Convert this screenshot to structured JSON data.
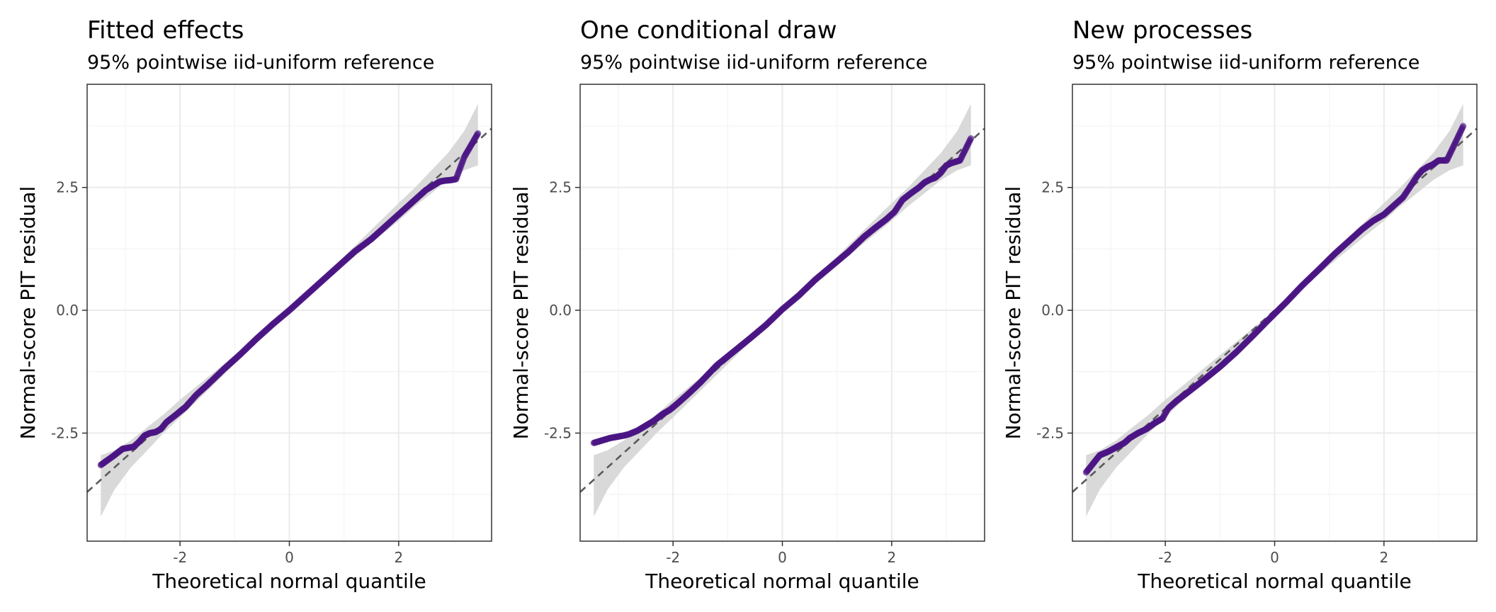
{
  "chart_data": [
    {
      "type": "scatter",
      "title": "Fitted effects",
      "subtitle": "95% pointwise iid-uniform reference",
      "xlabel": "Theoretical normal quantile",
      "ylabel": "Normal-score PIT residual",
      "xlim": [
        -3.7,
        3.7
      ],
      "ylim": [
        -4.7,
        4.6
      ],
      "x_ticks": [
        -2,
        0,
        2
      ],
      "x_tick_labels": [
        "-2",
        "0",
        "2"
      ],
      "y_ticks": [
        -2.5,
        0,
        2.5
      ],
      "y_tick_labels": [
        "-2.5",
        "0.0",
        "2.5"
      ],
      "grid": true,
      "reference_line": {
        "slope": 1,
        "intercept": 0,
        "style": "dashed"
      },
      "band": {
        "x": [
          -3.45,
          -3.2,
          -2.9,
          -2.6,
          -2.3,
          -2.0,
          -1.5,
          0,
          1.5,
          2.0,
          2.3,
          2.6,
          2.9,
          3.2,
          3.45
        ],
        "lower": [
          -4.2,
          -3.65,
          -3.2,
          -2.85,
          -2.5,
          -2.18,
          -1.64,
          0,
          1.37,
          1.82,
          2.12,
          2.38,
          2.65,
          2.85,
          2.95
        ],
        "upper": [
          -2.95,
          -2.85,
          -2.65,
          -2.38,
          -2.12,
          -1.82,
          -1.37,
          0,
          1.64,
          2.18,
          2.5,
          2.85,
          3.2,
          3.65,
          4.2
        ]
      },
      "points": {
        "x": [
          -3.45,
          -3.2,
          -3.05,
          -2.95,
          -2.85,
          -2.75,
          -2.65,
          -2.55,
          -2.45,
          -2.35,
          -2.25,
          -2.1,
          -1.9,
          -1.7,
          -1.5,
          -1.2,
          -0.9,
          -0.6,
          -0.3,
          0,
          0.3,
          0.6,
          0.9,
          1.2,
          1.5,
          1.7,
          1.9,
          2.1,
          2.3,
          2.5,
          2.65,
          2.75,
          2.85,
          2.95,
          3.05,
          3.2,
          3.45
        ],
        "y": [
          -3.15,
          -2.95,
          -2.82,
          -2.8,
          -2.78,
          -2.68,
          -2.55,
          -2.5,
          -2.48,
          -2.42,
          -2.28,
          -2.15,
          -1.97,
          -1.72,
          -1.52,
          -1.2,
          -0.9,
          -0.58,
          -0.28,
          0.0,
          0.3,
          0.6,
          0.9,
          1.2,
          1.45,
          1.65,
          1.85,
          2.05,
          2.25,
          2.45,
          2.55,
          2.62,
          2.64,
          2.65,
          2.67,
          3.12,
          3.6
        ]
      }
    },
    {
      "type": "scatter",
      "title": "One conditional draw",
      "subtitle": "95% pointwise iid-uniform reference",
      "xlabel": "Theoretical normal quantile",
      "ylabel": "Normal-score PIT residual",
      "xlim": [
        -3.7,
        3.7
      ],
      "ylim": [
        -4.7,
        4.6
      ],
      "x_ticks": [
        -2,
        0,
        2
      ],
      "x_tick_labels": [
        "-2",
        "0",
        "2"
      ],
      "y_ticks": [
        -2.5,
        0,
        2.5
      ],
      "y_tick_labels": [
        "-2.5",
        "0.0",
        "2.5"
      ],
      "grid": true,
      "reference_line": {
        "slope": 1,
        "intercept": 0,
        "style": "dashed"
      },
      "band": {
        "x": [
          -3.45,
          -3.2,
          -2.9,
          -2.6,
          -2.3,
          -2.0,
          -1.5,
          0,
          1.5,
          2.0,
          2.3,
          2.6,
          2.9,
          3.2,
          3.45
        ],
        "lower": [
          -4.2,
          -3.65,
          -3.2,
          -2.85,
          -2.5,
          -2.18,
          -1.64,
          0,
          1.37,
          1.82,
          2.12,
          2.38,
          2.65,
          2.85,
          2.95
        ],
        "upper": [
          -2.95,
          -2.85,
          -2.65,
          -2.38,
          -2.12,
          -1.82,
          -1.37,
          0,
          1.64,
          2.18,
          2.5,
          2.85,
          3.2,
          3.65,
          4.2
        ]
      },
      "points": {
        "x": [
          -3.45,
          -3.15,
          -3.0,
          -2.9,
          -2.8,
          -2.65,
          -2.5,
          -2.35,
          -2.2,
          -2.05,
          -1.9,
          -1.7,
          -1.5,
          -1.2,
          -0.9,
          -0.6,
          -0.3,
          0,
          0.3,
          0.6,
          0.9,
          1.2,
          1.5,
          1.7,
          1.9,
          2.05,
          2.2,
          2.35,
          2.5,
          2.6,
          2.7,
          2.8,
          2.9,
          3.0,
          3.1,
          3.25,
          3.45
        ],
        "y": [
          -2.7,
          -2.6,
          -2.57,
          -2.55,
          -2.52,
          -2.45,
          -2.35,
          -2.25,
          -2.12,
          -2.02,
          -1.88,
          -1.68,
          -1.47,
          -1.12,
          -0.85,
          -0.58,
          -0.3,
          0.02,
          0.3,
          0.62,
          0.9,
          1.18,
          1.5,
          1.68,
          1.85,
          2.0,
          2.25,
          2.38,
          2.5,
          2.6,
          2.66,
          2.7,
          2.8,
          2.95,
          3.0,
          3.05,
          3.5
        ]
      }
    },
    {
      "type": "scatter",
      "title": "New processes",
      "subtitle": "95% pointwise iid-uniform reference",
      "xlabel": "Theoretical normal quantile",
      "ylabel": "Normal-score PIT residual",
      "xlim": [
        -3.7,
        3.7
      ],
      "ylim": [
        -4.7,
        4.6
      ],
      "x_ticks": [
        -2,
        0,
        2
      ],
      "x_tick_labels": [
        "-2",
        "0",
        "2"
      ],
      "y_ticks": [
        -2.5,
        0,
        2.5
      ],
      "y_tick_labels": [
        "-2.5",
        "0.0",
        "2.5"
      ],
      "grid": true,
      "reference_line": {
        "slope": 1,
        "intercept": 0,
        "style": "dashed"
      },
      "band": {
        "x": [
          -3.45,
          -3.2,
          -2.9,
          -2.6,
          -2.3,
          -2.0,
          -1.5,
          0,
          1.5,
          2.0,
          2.3,
          2.6,
          2.9,
          3.2,
          3.45
        ],
        "lower": [
          -4.2,
          -3.65,
          -3.2,
          -2.85,
          -2.5,
          -2.18,
          -1.64,
          0,
          1.37,
          1.82,
          2.12,
          2.38,
          2.65,
          2.85,
          2.95
        ],
        "upper": [
          -2.95,
          -2.85,
          -2.65,
          -2.38,
          -2.12,
          -1.82,
          -1.37,
          0,
          1.64,
          2.18,
          2.5,
          2.85,
          3.2,
          3.65,
          4.2
        ]
      },
      "points": {
        "x": [
          -3.45,
          -3.2,
          -3.05,
          -2.95,
          -2.85,
          -2.75,
          -2.65,
          -2.5,
          -2.35,
          -2.2,
          -2.05,
          -1.95,
          -1.8,
          -1.6,
          -1.3,
          -1.0,
          -0.7,
          -0.4,
          -0.1,
          0.2,
          0.5,
          0.8,
          1.1,
          1.4,
          1.6,
          1.8,
          2.0,
          2.2,
          2.35,
          2.5,
          2.6,
          2.7,
          2.8,
          2.9,
          3.0,
          3.15,
          3.45
        ],
        "y": [
          -3.3,
          -2.95,
          -2.88,
          -2.82,
          -2.76,
          -2.7,
          -2.6,
          -2.5,
          -2.42,
          -2.3,
          -2.2,
          -2.0,
          -1.85,
          -1.68,
          -1.42,
          -1.15,
          -0.85,
          -0.52,
          -0.18,
          0.15,
          0.5,
          0.82,
          1.15,
          1.45,
          1.65,
          1.82,
          1.95,
          2.15,
          2.3,
          2.55,
          2.72,
          2.85,
          2.92,
          2.97,
          3.05,
          3.05,
          3.75
        ]
      }
    }
  ]
}
